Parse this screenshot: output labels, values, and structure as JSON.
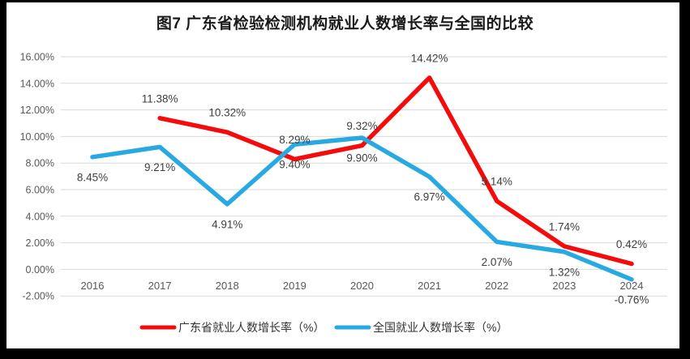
{
  "title": "图7  广东省检验检测机构就业人数增长率与全国的比较",
  "chart_data": {
    "type": "line",
    "categories": [
      "2016",
      "2017",
      "2018",
      "2019",
      "2020",
      "2021",
      "2022",
      "2023",
      "2024"
    ],
    "series": [
      {
        "name": "广东省就业人数增长率（%）",
        "color": "#f40b0b",
        "values": [
          null,
          11.38,
          10.32,
          8.29,
          9.32,
          14.42,
          5.14,
          1.74,
          0.42
        ],
        "labels": [
          "",
          "11.38%",
          "10.32%",
          "8.29%",
          "9.32%",
          "14.42%",
          "5.14%",
          "1.74%",
          "0.42%"
        ]
      },
      {
        "name": "全国就业人数增长率（%）",
        "color": "#29a9e1",
        "values": [
          8.45,
          9.21,
          4.91,
          9.4,
          9.9,
          6.97,
          2.07,
          1.32,
          -0.76
        ],
        "labels": [
          "8.45%",
          "9.21%",
          "4.91%",
          "9.40%",
          "9.90%",
          "6.97%",
          "2.07%",
          "1.32%",
          "-0.76%"
        ]
      }
    ],
    "y_tick_labels": [
      "16.00%",
      "14.00%",
      "12.00%",
      "10.00%",
      "8.00%",
      "6.00%",
      "4.00%",
      "2.00%",
      "0.00%",
      "-2.00%"
    ],
    "y_tick_values": [
      16,
      14,
      12,
      10,
      8,
      6,
      4,
      2,
      0,
      -2
    ],
    "ylim": [
      -2,
      16
    ],
    "grid": true,
    "legend_position": "bottom",
    "colors": {
      "grid_line": "#d9d9d9",
      "axis_text": "#595959",
      "data_label_text": "#3f3f3f",
      "background": "#ffffff",
      "frame": "#000000"
    }
  }
}
